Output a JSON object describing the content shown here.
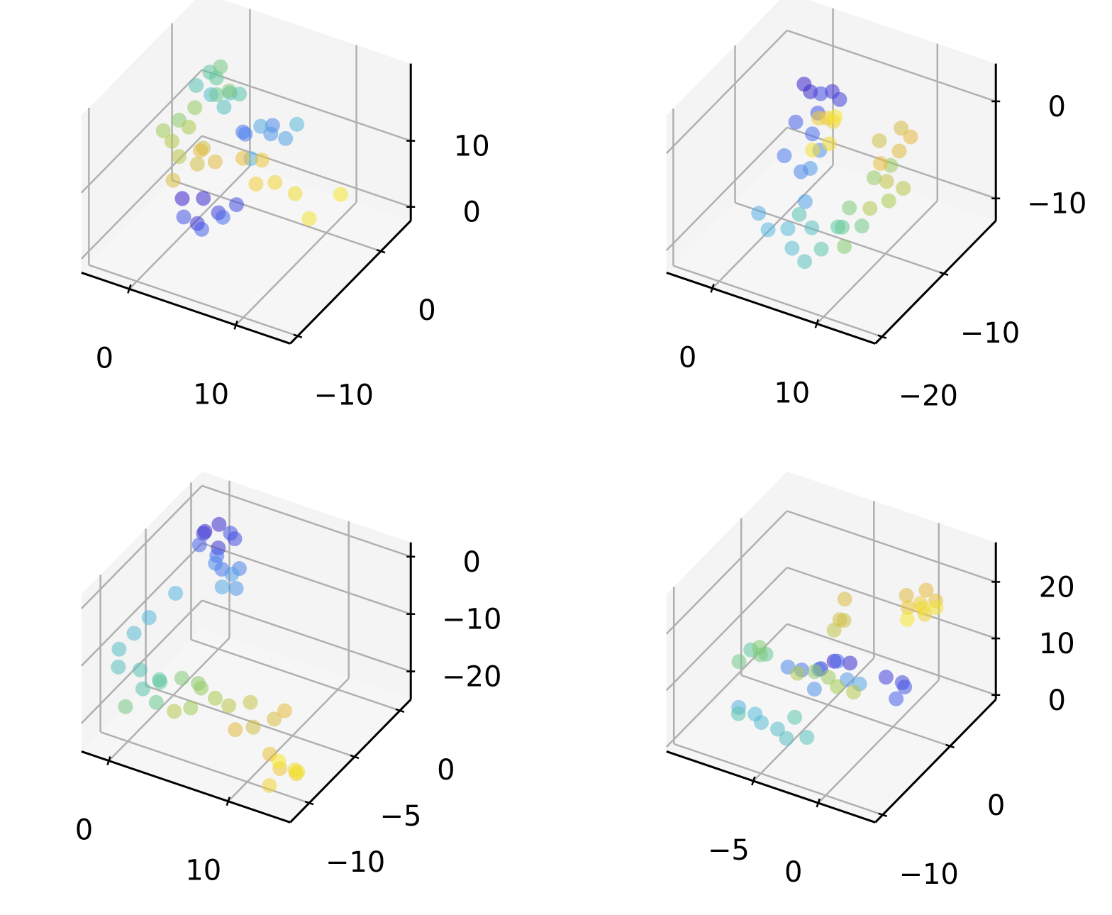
{
  "chart_data": [
    {
      "type": "scatter3d",
      "xlim": [
        -4.5,
        15.1
      ],
      "ylim": [
        -10.9,
        3.6
      ],
      "zlim": [
        -2.1,
        21.7
      ],
      "xticks": [
        0,
        10
      ],
      "yticks": [
        {
          "value": -10,
          "label": "−10"
        },
        0
      ],
      "zticks": [
        0,
        10
      ],
      "cmap": [
        "#3b20c8",
        "#4a6ef0",
        "#58b8e0",
        "#5cc8a0",
        "#a8cc50",
        "#e8b840",
        "#f5e830"
      ],
      "x": [
        -1.2,
        0,
        1,
        2.2,
        3.5,
        0.5,
        1.8,
        3,
        4.5,
        5.5,
        6.5,
        7.5,
        8.5,
        5,
        6.8,
        8,
        1.5,
        2.5,
        3.5,
        0.5,
        3,
        1,
        2,
        2.8,
        1.6,
        3.2,
        -1.5,
        -0.8,
        -2.2,
        -0.2,
        -1,
        -1.5,
        0,
        1,
        -0.5,
        1.5,
        0.5,
        4.5,
        5.5,
        6.5,
        7.5,
        9,
        11.5,
        12.5
      ],
      "y": [
        -3,
        -2,
        -4,
        -3,
        -2.5,
        -5,
        -4.5,
        -3.5,
        -3,
        -4,
        -2,
        -3.5,
        -3,
        -1.5,
        -5,
        -1,
        -3,
        -2,
        -4,
        -3.5,
        -1.5,
        -2.5,
        -3,
        -4,
        -2,
        -3,
        -3,
        -2,
        -4,
        -3.5,
        -4.5,
        -3,
        -2,
        -4,
        -5,
        -2.5,
        -3,
        -3,
        -2,
        -4,
        -3,
        -2.5,
        -4,
        -1.5
      ],
      "z": [
        0.8,
        0.2,
        -0.5,
        0.5,
        1.8,
        1.5,
        -0.3,
        0.9,
        14,
        15.5,
        14.8,
        16,
        15.2,
        13.2,
        13.8,
        14.5,
        18,
        17.5,
        18.5,
        19.5,
        17,
        20.5,
        20.8,
        20,
        21,
        19.5,
        12.5,
        13.5,
        11.8,
        12.8,
        11.5,
        7,
        7.8,
        8.5,
        6.5,
        7.2,
        9,
        10,
        9,
        8.5,
        8,
        6.5,
        6,
        7
      ]
    },
    {
      "type": "scatter3d",
      "xlim": [
        -4.4,
        15.6
      ],
      "ylim": [
        -21.1,
        -1.6
      ],
      "zlim": [
        -12.3,
        3.9
      ],
      "xticks": [
        0,
        10
      ],
      "yticks": [
        {
          "value": -20,
          "label": "−20"
        },
        {
          "value": -10,
          "label": "−10"
        }
      ],
      "zticks": [
        {
          "value": -10,
          "label": "−10"
        },
        0
      ],
      "cmap": [
        "#3b20c8",
        "#4a6ef0",
        "#58b8e0",
        "#5cc8a0",
        "#a8cc50",
        "#e8b840",
        "#f5e830"
      ],
      "x": [
        2.8,
        4,
        5.2,
        6.5,
        3.5,
        5,
        2,
        3,
        1.5,
        2.8,
        4,
        2.2,
        3.5,
        2,
        3.5,
        4.5,
        5.5,
        6.5,
        7,
        5,
        8,
        9,
        10,
        11,
        9.5,
        10.5,
        9.5,
        10.5,
        11.5,
        10,
        12,
        11,
        10,
        11.5,
        12.5,
        13,
        11,
        5,
        4.2,
        5,
        5.8,
        4.5,
        5.5
      ],
      "y": [
        -11,
        -12,
        -10.5,
        -11.5,
        -9.5,
        -12.5,
        -11,
        -10,
        -12,
        -11.5,
        -10.5,
        -9,
        -12,
        -17,
        -18,
        -16.5,
        -17.5,
        -16,
        -18,
        -15.5,
        -17,
        -16,
        -17,
        -15.5,
        -15,
        -17.5,
        -11,
        -10,
        -12,
        -12.5,
        -10.5,
        -11.5,
        -11,
        -10,
        -12,
        -11,
        -12.5,
        -11,
        -11,
        -10,
        -12,
        -12.5,
        -10.5
      ],
      "z": [
        3.2,
        3.5,
        3,
        3.3,
        1.5,
        2,
        -1,
        -2.5,
        -4,
        -5.5,
        -3.5,
        -7,
        -8,
        -6.5,
        -7,
        -7.5,
        -8.5,
        -7,
        -9,
        -6.5,
        -8,
        -6,
        -5,
        -5.5,
        -4.5,
        -6.5,
        -4,
        -3,
        -5,
        -6,
        -4.5,
        -3.5,
        0,
        1.2,
        0.5,
        1.5,
        -1,
        0.5,
        0.2,
        -0.5,
        -1.2,
        -2,
        0.5
      ]
    },
    {
      "type": "scatter3d",
      "xlim": [
        -2.3,
        15.2
      ],
      "ylim": [
        -12.1,
        1.2
      ],
      "zlim": [
        -24.9,
        2.5
      ],
      "xticks": [
        0,
        10
      ],
      "yticks": [
        {
          "value": -10,
          "label": "−10"
        },
        {
          "value": -5,
          "label": "−5"
        },
        0
      ],
      "zticks": [
        {
          "value": -20,
          "label": "−20"
        },
        {
          "value": -10,
          "label": "−10"
        },
        0
      ],
      "cmap": [
        "#3b20c8",
        "#4a6ef0",
        "#58b8e0",
        "#5cc8a0",
        "#a8cc50",
        "#e8b840",
        "#f5e830"
      ],
      "x": [
        0,
        0.8,
        1.5,
        -0.5,
        2.5,
        1,
        0.3,
        1,
        1.8,
        2.5,
        0.5,
        3,
        1.5,
        2.2,
        0.2,
        -0.5,
        -1,
        -1.5,
        -0.8,
        -0.5,
        0.5,
        1.5,
        0.8,
        2,
        -0.2,
        3,
        4,
        5,
        4.5,
        5.8,
        3.5,
        8,
        9.5,
        10.5,
        11.5,
        9,
        12,
        12.5,
        13.5,
        14.5,
        13,
        14,
        15,
        12.8
      ],
      "y": [
        -1.5,
        -1,
        -2,
        -1,
        -1.5,
        0,
        -2.5,
        -1.5,
        -2,
        -1,
        -1,
        -2,
        -0.5,
        -2.5,
        -5,
        -7,
        -8,
        -9,
        -10,
        -8,
        -9,
        -8.5,
        -7.5,
        -9.5,
        -10,
        -8,
        -7.5,
        -8.5,
        -9,
        -8,
        -9.5,
        -9.4,
        -9,
        -10,
        -9,
        -10,
        -8.5,
        -10.8,
        -11,
        -10.5,
        -11.5,
        -10,
        -11,
        -10.2
      ],
      "z": [
        -2,
        -1,
        -3,
        -3.5,
        -1.5,
        -4,
        -2.5,
        -5.5,
        -6.5,
        -7.5,
        -8,
        -9,
        -10,
        -8.5,
        -7,
        -8.5,
        -10,
        -11.5,
        -12.5,
        -16,
        -17,
        -15.5,
        -18,
        -17.5,
        -19,
        -15,
        -16,
        -14.5,
        -17.5,
        -16.5,
        -18,
        -14,
        -13,
        -15,
        -14.5,
        -16.5,
        -13.5,
        -17,
        -18.5,
        -19.5,
        -21,
        -20,
        -18,
        -19
      ]
    },
    {
      "type": "scatter3d",
      "xlim": [
        -11.7,
        4.4
      ],
      "ylim": [
        -11.1,
        6.8
      ],
      "zlim": [
        -0.8,
        27
      ],
      "xticks": [
        {
          "value": -5,
          "label": "−5"
        },
        0
      ],
      "yticks": [
        {
          "value": -10,
          "label": "−10"
        },
        0
      ],
      "zticks": [
        0,
        10,
        20
      ],
      "cmap": [
        "#3b20c8",
        "#4a6ef0",
        "#58b8e0",
        "#5cc8a0",
        "#a8cc50",
        "#e8b840",
        "#f5e830"
      ],
      "x": [
        -3.5,
        -2.8,
        -4,
        0.5,
        1.5,
        2.2,
        1.8,
        -3,
        -6,
        -5.2,
        -6.8,
        -4.5,
        -2.5,
        -1.8,
        -8,
        -7,
        -6,
        -5,
        -3.8,
        -3,
        -7.5,
        -4.2,
        -8,
        -7.2,
        -8.5,
        -7,
        -7.8,
        -5,
        -4.2,
        -3,
        -5.8,
        -2,
        -3.5,
        -3,
        -2.8,
        -3.2,
        0,
        1,
        2,
        -0.5,
        0.3,
        1,
        0.2,
        1.5,
        -0.2
      ],
      "y": [
        -2,
        -1,
        -3,
        -2,
        -1.5,
        -2.5,
        -3,
        -2.5,
        -2,
        -1,
        -2.5,
        -3,
        -2,
        -1.5,
        -7.5,
        -7,
        -8,
        -7.5,
        -8.5,
        -7,
        -8.5,
        -6.5,
        -5.7,
        -5,
        -6.5,
        -6.2,
        -4.8,
        -2,
        -1.5,
        -2.5,
        -3,
        -2,
        -2,
        -1.5,
        -2.5,
        -1,
        2,
        3,
        2.5,
        3.2,
        3.5,
        2.8,
        4,
        3.5,
        2.5
      ],
      "z": [
        10.5,
        9.5,
        10,
        10.8,
        10,
        11,
        9.2,
        11.5,
        7,
        6.5,
        7.5,
        6,
        8,
        7.2,
        5.5,
        4.5,
        5,
        4,
        4.5,
        3.5,
        6,
        5.5,
        13.5,
        12.5,
        12,
        14,
        13,
        7.5,
        6.5,
        7,
        7.8,
        6.2,
        16,
        17.5,
        19,
        20.5,
        20,
        20.5,
        20,
        16,
        17,
        16.5,
        15.5,
        17.2,
        15
      ]
    }
  ]
}
